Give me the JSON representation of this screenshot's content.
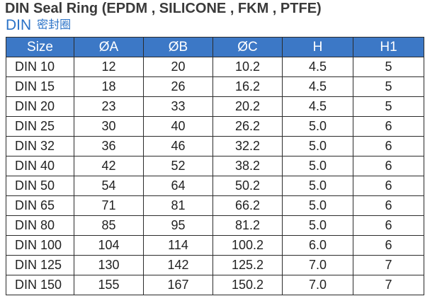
{
  "title": "DIN Seal Ring (EPDM , SILICONE , FKM , PTFE)",
  "subtitle": {
    "latin": "DIN",
    "cjk": "密封圈"
  },
  "table": {
    "headers": [
      "Size",
      "ØA",
      "ØB",
      "ØC",
      "H",
      "H1"
    ],
    "rows": [
      [
        "DIN 10",
        "12",
        "20",
        "10.2",
        "4.5",
        "5"
      ],
      [
        "DIN 15",
        "18",
        "26",
        "16.2",
        "4.5",
        "5"
      ],
      [
        "DIN 20",
        "23",
        "33",
        "20.2",
        "4.5",
        "5"
      ],
      [
        "DIN 25",
        "30",
        "40",
        "26.2",
        "5.0",
        "6"
      ],
      [
        "DIN 32",
        "36",
        "46",
        "32.2",
        "5.0",
        "6"
      ],
      [
        "DIN 40",
        "42",
        "52",
        "38.2",
        "5.0",
        "6"
      ],
      [
        "DIN 50",
        "54",
        "64",
        "50.2",
        "5.0",
        "6"
      ],
      [
        "DIN 65",
        "71",
        "81",
        "66.2",
        "5.0",
        "6"
      ],
      [
        "DIN 80",
        "85",
        "95",
        "81.2",
        "5.0",
        "6"
      ],
      [
        "DIN 100",
        "104",
        "114",
        "100.2",
        "6.0",
        "6"
      ],
      [
        "DIN 125",
        "130",
        "142",
        "125.2",
        "7.0",
        "7"
      ],
      [
        "DIN 150",
        "155",
        "167",
        "150.2",
        "7.0",
        "7"
      ]
    ]
  },
  "colors": {
    "header_bg": "#3c78c6",
    "subtitle": "#2a72c7",
    "title": "#3a3a3a"
  }
}
